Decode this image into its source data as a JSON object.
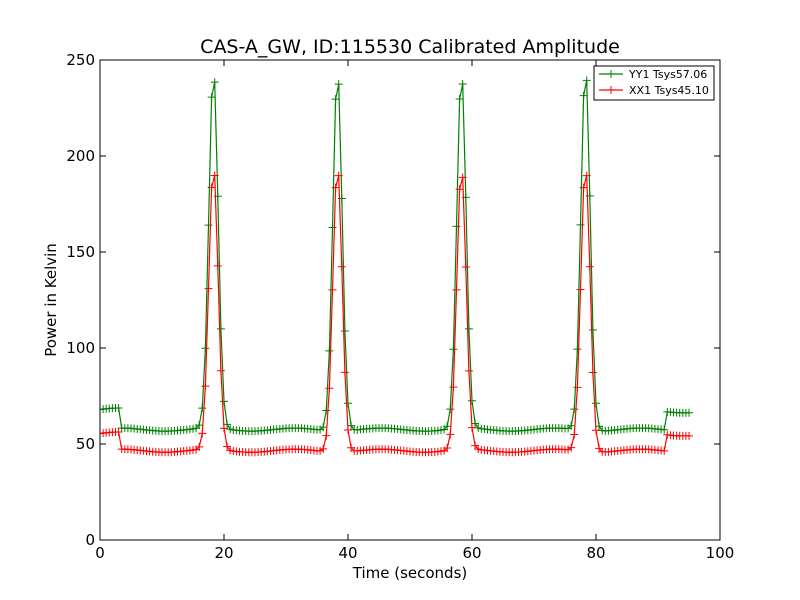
{
  "chart_data": {
    "type": "line",
    "title": "CAS-A_GW, ID:115530 Calibrated Amplitude",
    "xlabel": "Time (seconds)",
    "ylabel": "Power in Kelvin",
    "xlim": [
      0,
      100
    ],
    "ylim": [
      0,
      250
    ],
    "xticks": [
      "0",
      "20",
      "40",
      "60",
      "80",
      "100"
    ],
    "yticks": [
      "0",
      "50",
      "100",
      "150",
      "200",
      "250"
    ],
    "grid": false,
    "legend_position": "top-right",
    "marker": "+",
    "series": [
      {
        "name": "YY1 Tsys57.06",
        "color": "#008000",
        "baseline_segments": [
          {
            "x_start": 0,
            "x_end": 3.5,
            "y": 68
          },
          {
            "x_start": 3.5,
            "x_end": 91.5,
            "y": 57.5
          },
          {
            "x_start": 91.5,
            "x_end": 95,
            "y": 67
          }
        ],
        "peaks": [
          {
            "x": 18.3,
            "y": 245
          },
          {
            "x": 38.3,
            "y": 244
          },
          {
            "x": 58.3,
            "y": 244
          },
          {
            "x": 78.3,
            "y": 246
          }
        ]
      },
      {
        "name": "XX1 Tsys45.10",
        "color": "#ff0000",
        "baseline_segments": [
          {
            "x_start": 0,
            "x_end": 3.5,
            "y": 55.5
          },
          {
            "x_start": 3.5,
            "x_end": 91.5,
            "y": 46.5
          },
          {
            "x_start": 91.5,
            "x_end": 95,
            "y": 55
          }
        ],
        "peaks": [
          {
            "x": 18.3,
            "y": 195
          },
          {
            "x": 38.3,
            "y": 195
          },
          {
            "x": 58.3,
            "y": 194
          },
          {
            "x": 78.3,
            "y": 195
          }
        ]
      }
    ]
  }
}
